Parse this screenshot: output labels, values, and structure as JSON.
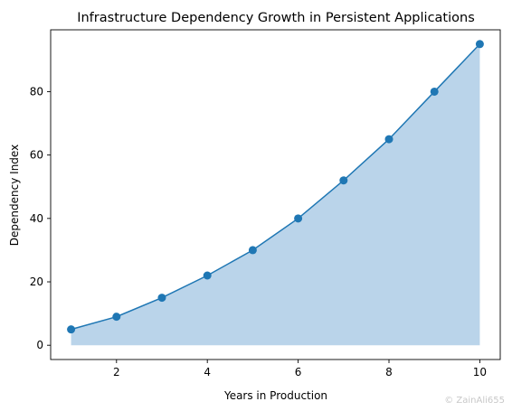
{
  "chart_data": {
    "type": "area",
    "title": "Infrastructure Dependency Growth in Persistent Applications",
    "xlabel": "Years in Production",
    "ylabel": "Dependency Index",
    "x": [
      1,
      2,
      3,
      4,
      5,
      6,
      7,
      8,
      9,
      10
    ],
    "series": [
      {
        "values": [
          5,
          9,
          15,
          22,
          30,
          40,
          52,
          65,
          80,
          95
        ]
      }
    ],
    "xlim": [
      0.55,
      10.45
    ],
    "ylim": [
      -4.5,
      99.5
    ],
    "xticks": [
      2,
      4,
      6,
      8,
      10
    ],
    "yticks": [
      0,
      20,
      40,
      60,
      80
    ],
    "grid": false,
    "line_color": "#1f77b4",
    "fill_color": "#bad4ea"
  },
  "watermark": "© ZainAli655"
}
